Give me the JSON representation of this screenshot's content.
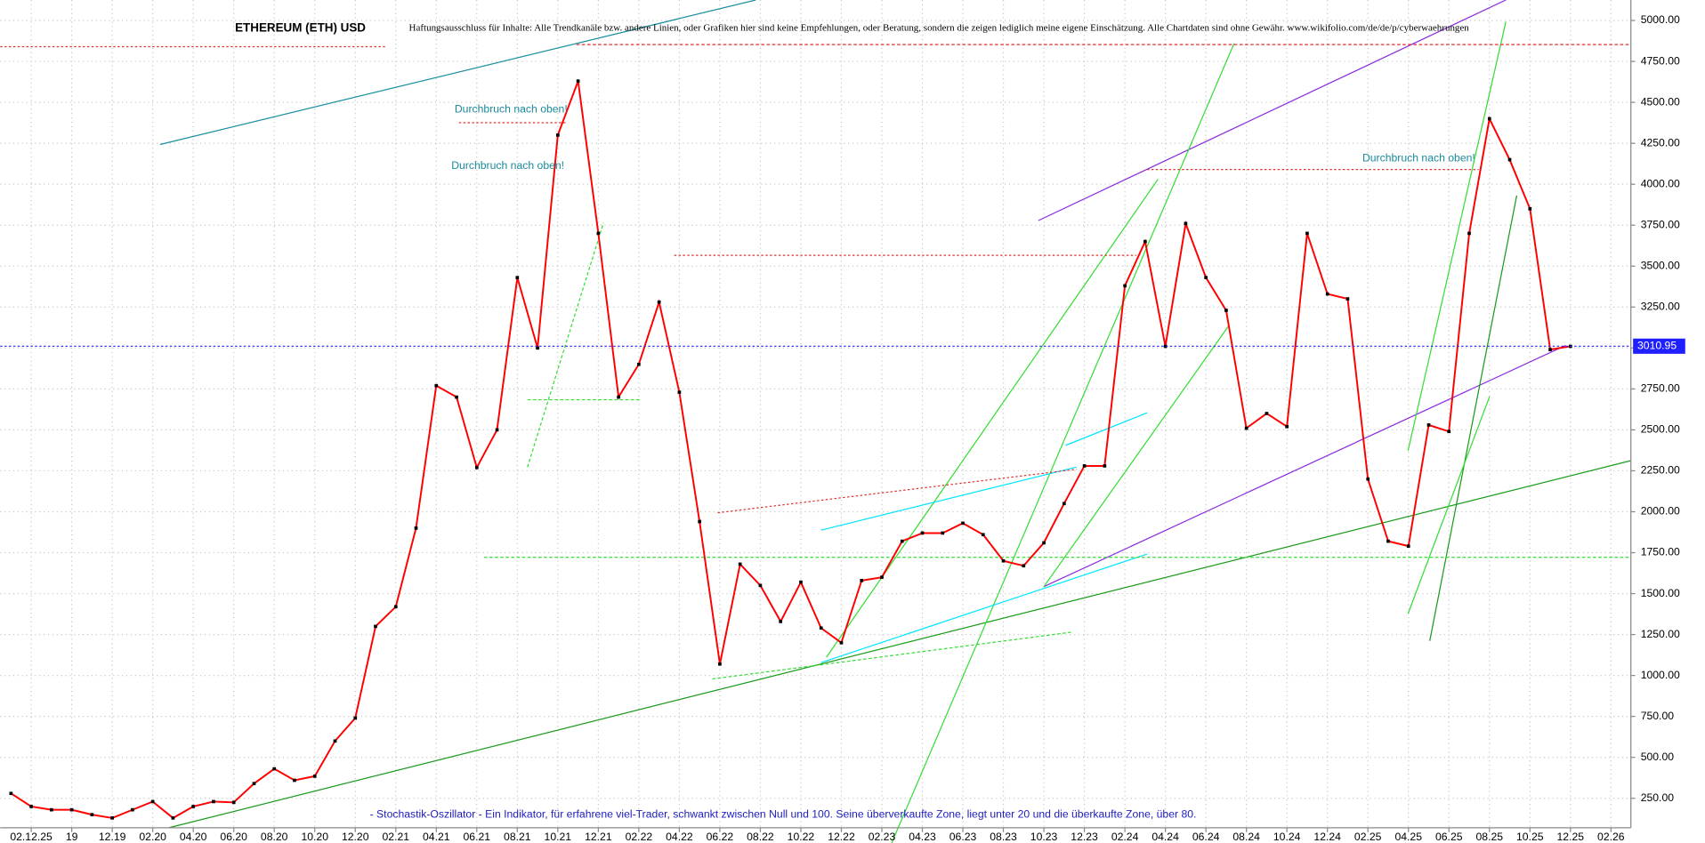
{
  "chart_data": {
    "type": "line",
    "title": "ETHEREUM (ETH) USD",
    "subtitle": "Haftungsausschluss für Inhalte: Alle Trendkanäle bzw. andere Linien, oder Grafiken hier sind keine Empfehlungen, oder Beratung, sondern die zeigen lediglich meine eigene Einschätzung. Alle Chartdaten sind ohne Gewähr.  www.wikifolio.com/de/de/p/cyberwaehrungen",
    "annotations": [
      "Durchbruch nach oben!",
      "Durchbruch nach oben!",
      "Durchbruch nach oben!"
    ],
    "footnote": "- Stochastik-Oszillator - Ein Indikator, für erfahrene viel-Trader, schwankt zwischen Null und 100. Seine überverkaufte Zone, liegt unter 20 und die überkaufte Zone, über 80.",
    "last_price": 3010.95,
    "color": "#ff0000",
    "categories": [
      null,
      "02.12.25",
      null,
      "19",
      null,
      "12.19",
      null,
      "02.20",
      null,
      "04.20",
      null,
      "06.20",
      null,
      "08.20",
      null,
      "10.20",
      null,
      "12.20",
      null,
      "02.21",
      null,
      "04.21",
      null,
      "06.21",
      null,
      "08.21",
      null,
      "10.21",
      null,
      "12.21",
      null,
      "02.22",
      null,
      "04.22",
      null,
      "06.22",
      null,
      "08.22",
      null,
      "10.22",
      null,
      "12.22",
      null,
      "02.23",
      null,
      "04.23",
      null,
      "06.23",
      null,
      "08.23",
      null,
      "10.23",
      null,
      "12.23",
      null,
      "02.24",
      null,
      "04.24",
      null,
      "06.24",
      null,
      "08.24",
      null,
      "10.24",
      null,
      "12.24",
      null,
      "02.25",
      null,
      "04.25",
      null,
      "06.25",
      null,
      "08.25",
      null,
      "10.25",
      null,
      "12.25",
      null,
      "02.26"
    ],
    "values": [
      280,
      200,
      180,
      180,
      150,
      130,
      180,
      230,
      130,
      200,
      230,
      225,
      340,
      430,
      360,
      385,
      600,
      740,
      1300,
      1420,
      1900,
      2770,
      2700,
      2270,
      2500,
      3430,
      3000,
      4300,
      4630,
      3700,
      2700,
      2900,
      3280,
      2730,
      1940,
      1070,
      1680,
      1550,
      1330,
      1570,
      1290,
      1200,
      1580,
      1600,
      1820,
      1870,
      1870,
      1930,
      1860,
      1700,
      1670,
      1810,
      2050,
      2280,
      2280,
      3380,
      3650,
      3010,
      3760,
      3430,
      3230,
      2510,
      2600,
      2520,
      3700,
      3330,
      3300,
      2200,
      1820,
      1790,
      2530,
      2490,
      3700,
      4400,
      4150,
      3850,
      2990,
      3010,
      null,
      null
    ],
    "ylim": [
      70,
      5125
    ],
    "yticks": [
      {
        "value": 250,
        "label": "250.00"
      },
      {
        "value": 500,
        "label": "500.00"
      },
      {
        "value": 750,
        "label": "750.00"
      },
      {
        "value": 1000,
        "label": "1000.00"
      },
      {
        "value": 1250,
        "label": "1250.00"
      },
      {
        "value": 1500,
        "label": "1500.00"
      },
      {
        "value": 1750,
        "label": "1750.00"
      },
      {
        "value": 2000,
        "label": "2000.00"
      },
      {
        "value": 2250,
        "label": "2250.00"
      },
      {
        "value": 2500,
        "label": "2500.00"
      },
      {
        "value": 2750,
        "label": "2750.00"
      },
      {
        "value": 3000,
        "label": "3000.00"
      },
      {
        "value": 3250,
        "label": "3250.00"
      },
      {
        "value": 3500,
        "label": "3500.00"
      },
      {
        "value": 3750,
        "label": "3750.00"
      },
      {
        "value": 4000,
        "label": "4000.00"
      },
      {
        "value": 4250,
        "label": "4250.00"
      },
      {
        "value": 4500,
        "label": "4500.00"
      },
      {
        "value": 4750,
        "label": "4750.00"
      },
      {
        "value": 5000,
        "label": "5000.00"
      }
    ],
    "grid": true
  }
}
